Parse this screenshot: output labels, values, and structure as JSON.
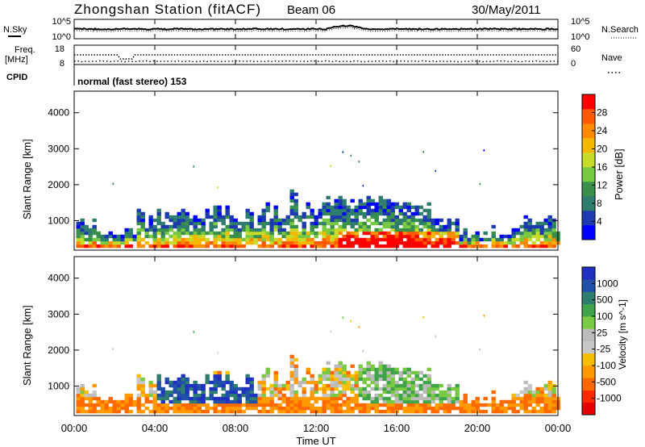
{
  "header": {
    "station": "Zhongshan Station (fitACF)",
    "beam": "Beam 06",
    "date": "30/May/2011"
  },
  "mini_panels": {
    "nsky_label": "N.Sky",
    "nsearch_label": "N.Search",
    "freq_label": "Freq.",
    "freq_unit": "[MHz]",
    "nave_label": "Nave",
    "cpid_label": "CPID",
    "cpid_value": "normal (fast stereo) 153",
    "noise_ticks_left": [
      "10^5",
      "10^0"
    ],
    "noise_ticks_right": [
      "10^5",
      "10^0"
    ],
    "freq_ticks": [
      "18",
      "8"
    ],
    "nave_ticks": [
      "60",
      "0"
    ]
  },
  "colors": {
    "power_scale": [
      "#0000ff",
      "#1e3ab0",
      "#2e7d6e",
      "#3a8f4a",
      "#7ac943",
      "#c7dc2a",
      "#f5b800",
      "#ff8c00",
      "#ff5a00",
      "#ff0000"
    ],
    "velocity_scale": [
      "#2030c0",
      "#2050a8",
      "#2e7d6e",
      "#3fa34a",
      "#7ac943",
      "#bbbbbb",
      "#c8c8c8",
      "#f5c000",
      "#ff9a00",
      "#ff6a00",
      "#ff2a00",
      "#e80000"
    ],
    "axis": "#000000"
  },
  "chart_data": [
    {
      "type": "heatmap",
      "name": "power",
      "xlabel": "Time UT",
      "ylabel": "Slant Range [km]",
      "x_ticks": [
        "00:00",
        "04:00",
        "08:00",
        "12:00",
        "16:00",
        "20:00",
        "00:00"
      ],
      "x_range_hours": [
        0,
        24
      ],
      "ylim": [
        180,
        4600
      ],
      "y_ticks": [
        1000,
        2000,
        3000,
        4000
      ],
      "colorbar_label": "Power [dB]",
      "colorbar_ticks": [
        "4",
        "8",
        "12",
        "16",
        "20",
        "24",
        "28"
      ],
      "colorbar_range": [
        0,
        30
      ]
    },
    {
      "type": "heatmap",
      "name": "velocity",
      "xlabel": "Time UT",
      "ylabel": "Slant Range [km]",
      "x_ticks": [
        "00:00",
        "04:00",
        "08:00",
        "12:00",
        "16:00",
        "20:00",
        "00:00"
      ],
      "x_range_hours": [
        0,
        24
      ],
      "ylim": [
        180,
        4600
      ],
      "y_ticks": [
        1000,
        2000,
        3000,
        4000
      ],
      "colorbar_label": "Velocity [m s^-1]",
      "colorbar_ticks": [
        "1000",
        "500",
        "100",
        "25",
        "-25",
        "-100",
        "-500",
        "-1000"
      ]
    }
  ]
}
